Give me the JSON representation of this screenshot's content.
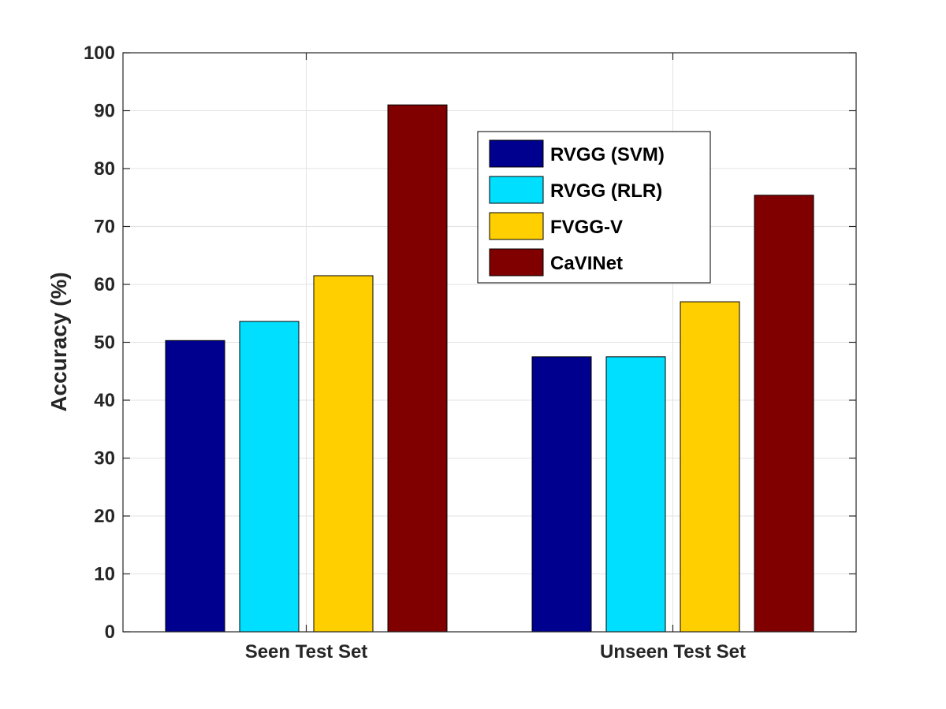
{
  "chart_data": {
    "type": "bar",
    "categories": [
      "Seen Test Set",
      "Unseen Test Set"
    ],
    "series": [
      {
        "name": "RVGG (SVM)",
        "color": "#00008F",
        "values": [
          50.3,
          47.5
        ]
      },
      {
        "name": "RVGG (RLR)",
        "color": "#00DFFF",
        "values": [
          53.6,
          47.5
        ]
      },
      {
        "name": "FVGG-V",
        "color": "#FFCF00",
        "values": [
          61.5,
          57.0
        ]
      },
      {
        "name": "CaVINet",
        "color": "#800000",
        "values": [
          91.0,
          75.4
        ]
      }
    ],
    "title": "",
    "xlabel": "",
    "ylabel": "Accuracy (%)",
    "ylim": [
      0,
      100
    ],
    "yticks": [
      0,
      10,
      20,
      30,
      40,
      50,
      60,
      70,
      80,
      90,
      100
    ],
    "grid": true,
    "legend_position": "top-right"
  }
}
